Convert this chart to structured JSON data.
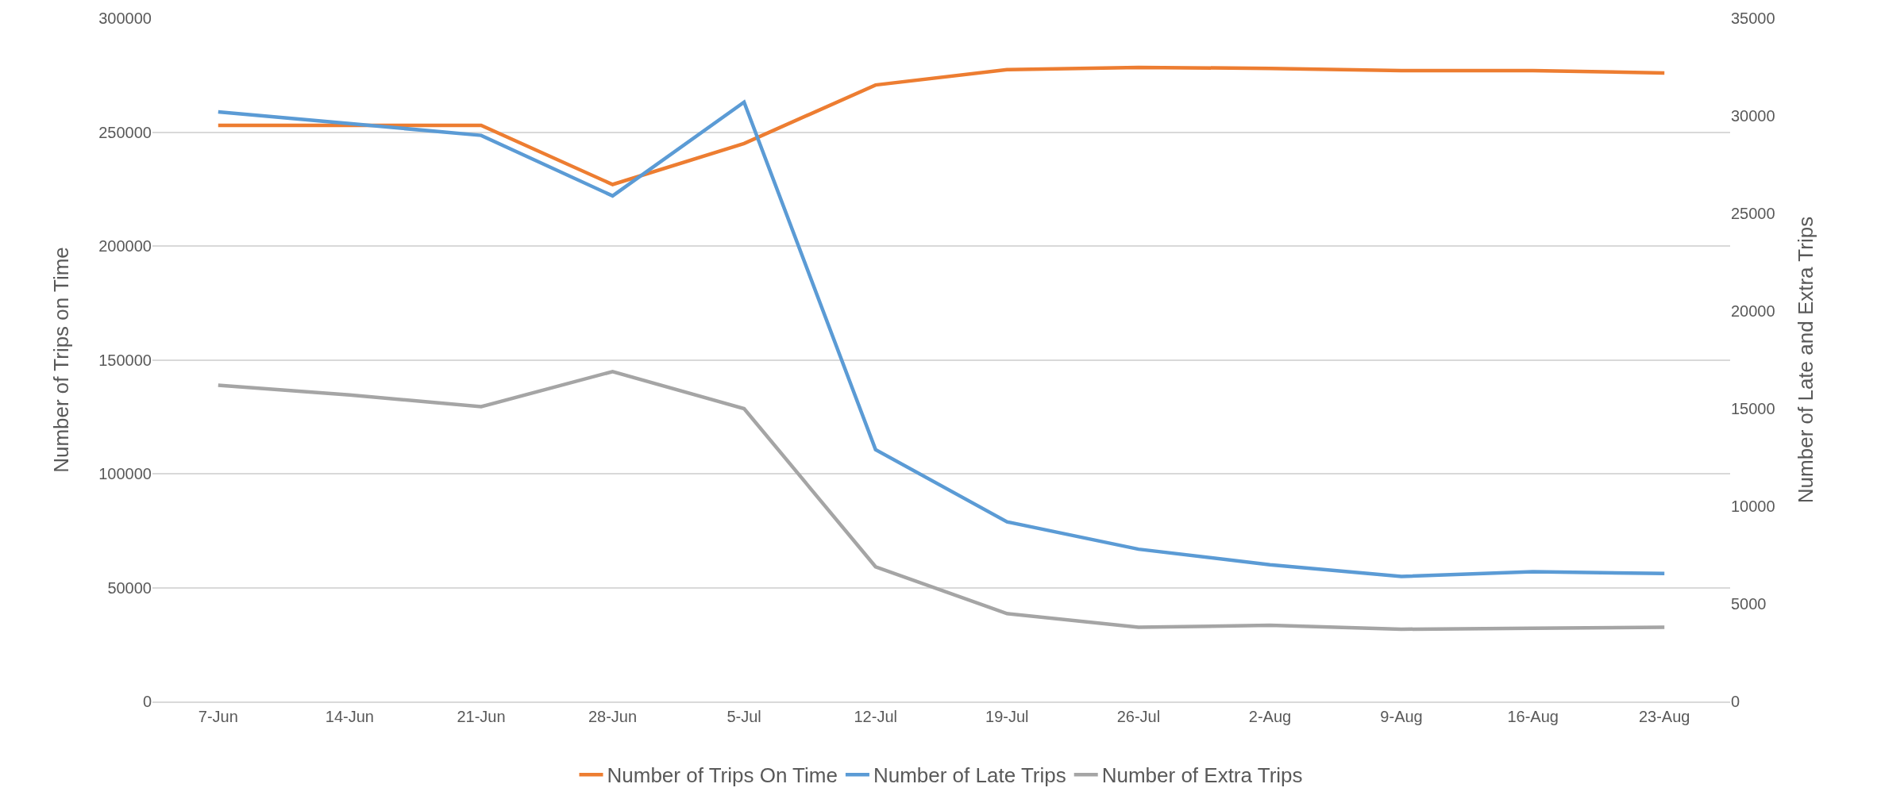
{
  "chart_data": {
    "type": "line",
    "ylabel": "Number of Trips on Time",
    "y2label": "Number of Late and Extra Trips",
    "categories": [
      "7-Jun",
      "14-Jun",
      "21-Jun",
      "28-Jun",
      "5-Jul",
      "12-Jul",
      "19-Jul",
      "26-Jul",
      "2-Aug",
      "9-Aug",
      "16-Aug",
      "23-Aug"
    ],
    "series": [
      {
        "name": "Number of Trips On Time",
        "color": "#ed7d31",
        "values": [
          253000,
          253000,
          253000,
          227000,
          245000,
          270700,
          277400,
          278400,
          278000,
          277000,
          277000,
          276000
        ]
      },
      {
        "name": "Number of Late Trips",
        "color": "#5b9bd5",
        "axis": "y2",
        "values": [
          30200,
          29600,
          29000,
          25900,
          30700,
          12900,
          9200,
          7800,
          7000,
          6400,
          6650,
          6550
        ]
      },
      {
        "name": "Number of Extra Trips",
        "color": "#a5a5a5",
        "axis": "y2",
        "values": [
          16200,
          15700,
          15100,
          16900,
          15000,
          6900,
          4500,
          3800,
          3900,
          3700,
          3750,
          3800
        ]
      }
    ],
    "ylim": [
      0,
      300000
    ],
    "yticks": [
      0,
      50000,
      100000,
      150000,
      200000,
      250000,
      300000
    ],
    "y2lim": [
      0,
      35000
    ],
    "y2ticks": [
      0,
      5000,
      10000,
      15000,
      20000,
      25000,
      30000,
      35000
    ],
    "grid": "y",
    "legend": "bottom",
    "marker": "none",
    "line_style": "solid"
  }
}
